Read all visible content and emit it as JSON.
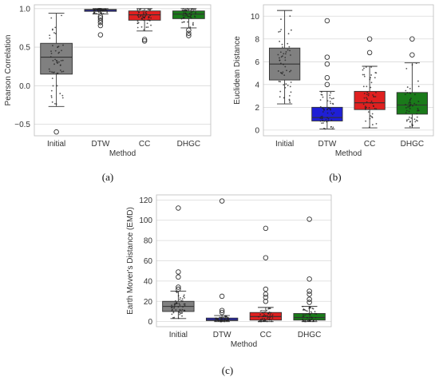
{
  "figure": {
    "colors": {
      "Initial": "#808080",
      "DTW": "#1f1fd6",
      "CC": "#e02020",
      "DHGC": "#1a7a1a"
    }
  },
  "chart_data": [
    {
      "type": "box",
      "caption": "(a)",
      "xlabel": "Method",
      "ylabel": "Pearson Correlation",
      "categories": [
        "Initial",
        "DTW",
        "CC",
        "DHGC"
      ],
      "ylim": [
        -0.65,
        1.05
      ],
      "yticks": [
        -0.5,
        0.0,
        0.5,
        1.0
      ],
      "ytick_labels": [
        "−0.5",
        "0.0",
        "0.5",
        "1.0"
      ],
      "grid": true,
      "boxes": [
        {
          "name": "Initial",
          "q1": 0.15,
          "median": 0.37,
          "q3": 0.55,
          "whisker_low": -0.27,
          "whisker_high": 0.94,
          "outliers": [
            -0.6
          ]
        },
        {
          "name": "DTW",
          "q1": 0.965,
          "median": 0.98,
          "q3": 0.99,
          "whisker_low": 0.93,
          "whisker_high": 1.0,
          "outliers": [
            0.9,
            0.88,
            0.85,
            0.82,
            0.78,
            0.66
          ]
        },
        {
          "name": "CC",
          "q1": 0.85,
          "median": 0.92,
          "q3": 0.97,
          "whisker_low": 0.71,
          "whisker_high": 1.0,
          "outliers": [
            0.6,
            0.58
          ]
        },
        {
          "name": "DHGC",
          "q1": 0.87,
          "median": 0.93,
          "q3": 0.97,
          "whisker_low": 0.75,
          "whisker_high": 1.0,
          "outliers": [
            0.72,
            0.68,
            0.65
          ]
        }
      ]
    },
    {
      "type": "box",
      "caption": "(b)",
      "xlabel": "Method",
      "ylabel": "Euclidean Distance",
      "categories": [
        "Initial",
        "DTW",
        "CC",
        "DHGC"
      ],
      "ylim": [
        -0.5,
        11.0
      ],
      "yticks": [
        0,
        2,
        4,
        6,
        8,
        10
      ],
      "ytick_labels": [
        "0",
        "2",
        "4",
        "6",
        "8",
        "10"
      ],
      "grid": true,
      "boxes": [
        {
          "name": "Initial",
          "q1": 4.4,
          "median": 5.8,
          "q3": 7.2,
          "whisker_low": 2.3,
          "whisker_high": 10.5,
          "outliers": []
        },
        {
          "name": "DTW",
          "q1": 0.8,
          "median": 1.1,
          "q3": 2.0,
          "whisker_low": 0.1,
          "whisker_high": 3.4,
          "outliers": [
            9.6,
            6.4,
            5.8,
            4.6,
            4.0
          ]
        },
        {
          "name": "CC",
          "q1": 1.8,
          "median": 2.4,
          "q3": 3.4,
          "whisker_low": 0.2,
          "whisker_high": 5.6,
          "outliers": [
            8.0,
            6.8
          ]
        },
        {
          "name": "DHGC",
          "q1": 1.4,
          "median": 2.2,
          "q3": 3.3,
          "whisker_low": 0.2,
          "whisker_high": 5.9,
          "outliers": [
            8.0,
            6.6
          ]
        }
      ]
    },
    {
      "type": "box",
      "caption": "(c)",
      "xlabel": "Method",
      "ylabel": "Earth Mover's Distance (EMD)",
      "categories": [
        "Initial",
        "DTW",
        "CC",
        "DHGC"
      ],
      "ylim": [
        -5,
        125
      ],
      "yticks": [
        0,
        20,
        40,
        60,
        80,
        100,
        120
      ],
      "ytick_labels": [
        "0",
        "20",
        "40",
        "60",
        "80",
        "100",
        "120"
      ],
      "grid": true,
      "boxes": [
        {
          "name": "Initial",
          "q1": 10,
          "median": 15,
          "q3": 20,
          "whisker_low": 3,
          "whisker_high": 30,
          "outliers": [
            112,
            49,
            44,
            34,
            32
          ]
        },
        {
          "name": "DTW",
          "q1": 1,
          "median": 2,
          "q3": 3.5,
          "whisker_low": 0,
          "whisker_high": 6,
          "outliers": [
            119,
            25,
            11,
            9
          ]
        },
        {
          "name": "CC",
          "q1": 1.5,
          "median": 5,
          "q3": 9,
          "whisker_low": 0,
          "whisker_high": 14,
          "outliers": [
            92,
            63,
            32,
            27,
            24,
            20
          ]
        },
        {
          "name": "DHGC",
          "q1": 1.5,
          "median": 4,
          "q3": 8,
          "whisker_low": 0,
          "whisker_high": 15,
          "outliers": [
            101,
            42,
            30,
            27,
            22,
            19
          ]
        }
      ]
    }
  ]
}
